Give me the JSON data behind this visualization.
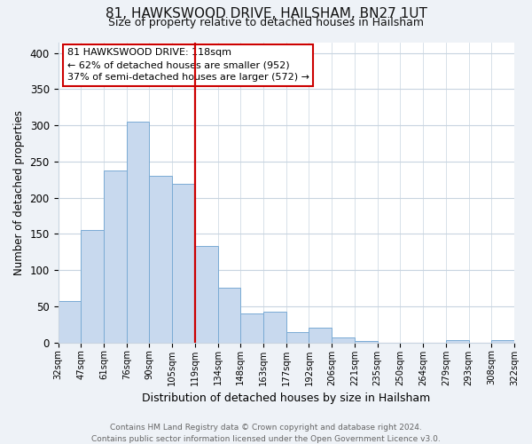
{
  "title": "81, HAWKSWOOD DRIVE, HAILSHAM, BN27 1UT",
  "subtitle": "Size of property relative to detached houses in Hailsham",
  "xlabel": "Distribution of detached houses by size in Hailsham",
  "ylabel": "Number of detached properties",
  "bar_labels": [
    "32sqm",
    "47sqm",
    "61sqm",
    "76sqm",
    "90sqm",
    "105sqm",
    "119sqm",
    "134sqm",
    "148sqm",
    "163sqm",
    "177sqm",
    "192sqm",
    "206sqm",
    "221sqm",
    "235sqm",
    "250sqm",
    "264sqm",
    "279sqm",
    "293sqm",
    "308sqm",
    "322sqm"
  ],
  "bar_values": [
    57,
    155,
    238,
    305,
    230,
    219,
    133,
    76,
    40,
    42,
    14,
    20,
    7,
    2,
    0,
    0,
    0,
    3,
    0,
    3
  ],
  "bar_color": "#c8d9ee",
  "bar_edge_color": "#7aabd4",
  "marker_color": "#cc0000",
  "ylim": [
    0,
    415
  ],
  "yticks": [
    0,
    50,
    100,
    150,
    200,
    250,
    300,
    350,
    400
  ],
  "annotation_lines": [
    "81 HAWKSWOOD DRIVE: 118sqm",
    "← 62% of detached houses are smaller (952)",
    "37% of semi-detached houses are larger (572) →"
  ],
  "footer_lines": [
    "Contains HM Land Registry data © Crown copyright and database right 2024.",
    "Contains public sector information licensed under the Open Government Licence v3.0."
  ],
  "bg_color": "#eef2f7",
  "plot_bg_color": "#ffffff",
  "grid_color": "#c8d4e0"
}
